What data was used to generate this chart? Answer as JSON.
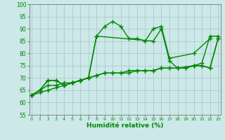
{
  "xlabel": "Humidité relative (%)",
  "bg_color": "#cce8e8",
  "grid_color": "#aacccc",
  "line_color": "#008800",
  "ylim": [
    55,
    100
  ],
  "xlim": [
    -0.3,
    23.3
  ],
  "yticks": [
    55,
    60,
    65,
    70,
    75,
    80,
    85,
    90,
    95,
    100
  ],
  "xticks": [
    0,
    1,
    2,
    3,
    4,
    5,
    6,
    7,
    8,
    9,
    10,
    11,
    12,
    13,
    14,
    15,
    16,
    17,
    18,
    19,
    20,
    21,
    22,
    23
  ],
  "s1x": [
    0,
    1,
    2,
    3,
    4,
    5,
    6,
    7,
    8,
    9,
    10,
    11,
    12,
    13,
    14,
    15,
    16,
    17,
    20,
    22
  ],
  "s1y": [
    63,
    65,
    69,
    69,
    67,
    68,
    69,
    70,
    87,
    91,
    93,
    91,
    86,
    86,
    85,
    90,
    91,
    78,
    80,
    86
  ],
  "s2x": [
    0,
    1,
    2,
    3,
    4,
    5,
    6,
    7,
    8,
    15,
    16,
    17,
    18,
    20,
    21,
    22,
    23
  ],
  "s2y": [
    63,
    65,
    69,
    69,
    67,
    68,
    69,
    70,
    87,
    85,
    90,
    77,
    74,
    75,
    76,
    87,
    87
  ],
  "s3x": [
    0,
    1,
    2,
    3,
    4,
    5,
    6,
    7,
    8,
    9,
    10,
    11,
    12,
    13,
    14,
    15,
    16,
    17,
    18,
    19,
    20,
    21,
    22,
    23
  ],
  "s3y": [
    63,
    65,
    67,
    67,
    68,
    68,
    69,
    70,
    71,
    72,
    72,
    72,
    72,
    73,
    73,
    73,
    74,
    74,
    74,
    74,
    75,
    75,
    74,
    86
  ],
  "s4x": [
    0,
    1,
    2,
    3,
    4,
    5,
    6,
    7,
    8,
    9,
    10,
    11,
    12,
    13,
    14,
    15,
    16,
    17,
    18,
    19,
    20,
    21,
    22,
    23
  ],
  "s4y": [
    63,
    64,
    65,
    66,
    67,
    68,
    69,
    70,
    71,
    72,
    72,
    72,
    73,
    73,
    73,
    73,
    74,
    74,
    74,
    74,
    75,
    75,
    74,
    86
  ],
  "xlabel_fontsize": 6.5,
  "tick_fontsize": 5.0
}
